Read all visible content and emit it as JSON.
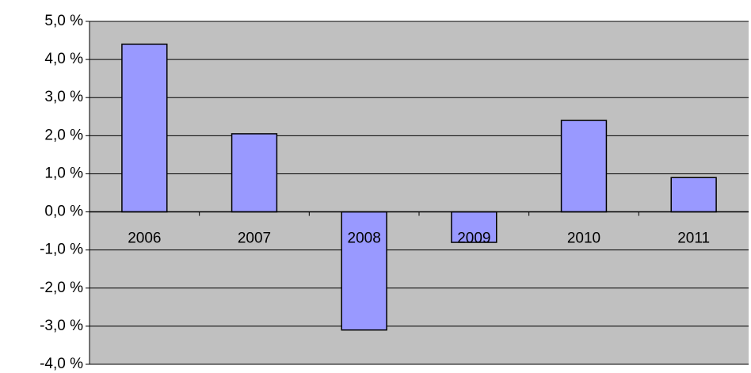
{
  "chart_data": {
    "type": "bar",
    "categories": [
      "2006",
      "2007",
      "2008",
      "2009",
      "2010",
      "2011"
    ],
    "values": [
      4.4,
      2.05,
      -3.1,
      -0.8,
      2.4,
      0.9
    ],
    "color": "#9999ff",
    "ylim": [
      -4,
      5
    ],
    "yticks": [
      {
        "value": -4,
        "label": "-4,0 %"
      },
      {
        "value": -3,
        "label": "-3,0 %"
      },
      {
        "value": -2,
        "label": "-2,0 %"
      },
      {
        "value": -1,
        "label": "-1,0 %"
      },
      {
        "value": 0,
        "label": "0,0 %"
      },
      {
        "value": 1,
        "label": "1,0 %"
      },
      {
        "value": 2,
        "label": "2,0 %"
      },
      {
        "value": 3,
        "label": "3,0 %"
      },
      {
        "value": 4,
        "label": "4,0 %"
      },
      {
        "value": 5,
        "label": "5,0 %"
      }
    ],
    "grid": true
  }
}
